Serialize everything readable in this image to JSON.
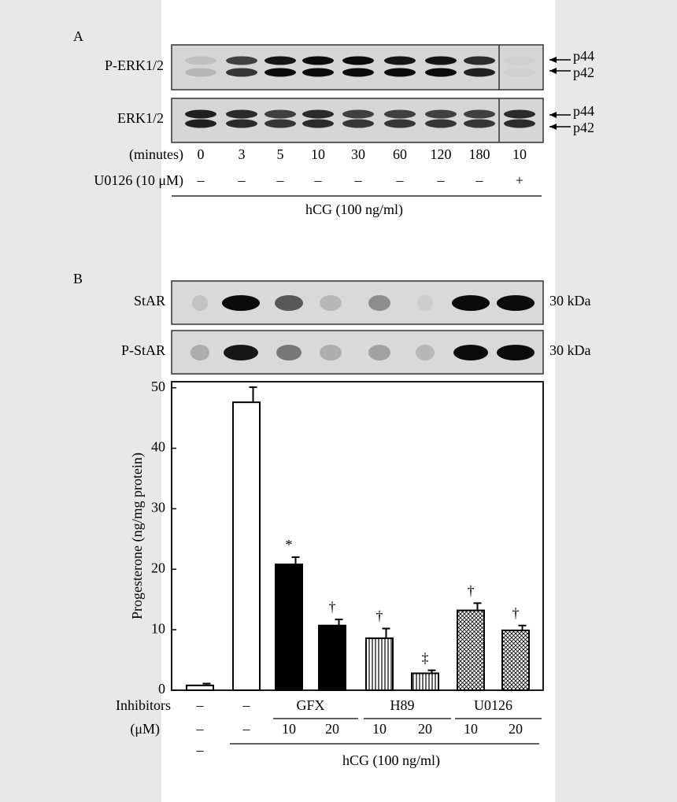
{
  "panel_a": {
    "label": "A",
    "rows": [
      "P-ERK1/2",
      "ERK1/2"
    ],
    "markers": [
      "p44",
      "p42"
    ],
    "time_label": "(minutes)",
    "times": [
      "0",
      "3",
      "5",
      "10",
      "30",
      "60",
      "120",
      "180",
      "10"
    ],
    "inhibitor_label": "U0126 (10 μM)",
    "inhibitor": [
      "–",
      "–",
      "–",
      "–",
      "–",
      "–",
      "–",
      "–",
      "+"
    ],
    "treatment": "hCG (100 ng/ml)"
  },
  "panel_b": {
    "label": "B",
    "rows": [
      "StAR",
      "P-StAR"
    ],
    "size_labels": [
      "30  kDa",
      "30  kDa"
    ]
  },
  "chart_data": {
    "type": "bar",
    "ylabel": "Progesterone (ng/mg protein)",
    "categories": [
      "–",
      "–",
      "10",
      "20",
      "10",
      "20",
      "10",
      "20"
    ],
    "values": [
      0.8,
      47.6,
      20.8,
      10.7,
      8.6,
      2.8,
      13.2,
      9.9
    ],
    "errors": [
      0.3,
      2.5,
      1.2,
      1.0,
      1.6,
      0.5,
      1.2,
      0.8
    ],
    "annotations": [
      null,
      null,
      "*",
      "†",
      "†",
      "‡",
      "†",
      "†"
    ],
    "patterns": [
      "open",
      "open",
      "solid",
      "solid",
      "vertical-stripes",
      "vertical-stripes",
      "crosshatch",
      "crosshatch"
    ],
    "color": "#000000",
    "ylim": [
      0,
      51
    ],
    "yticks": [
      0,
      10,
      20,
      30,
      40,
      50
    ],
    "inhibitors_label": "Inhibitors",
    "inhibitors": [
      "–",
      "–",
      "GFX",
      "H89",
      "U0126"
    ],
    "dose_label": "(μM)",
    "hcg_row": [
      "–"
    ],
    "treatment": "hCG (100 ng/ml)"
  }
}
